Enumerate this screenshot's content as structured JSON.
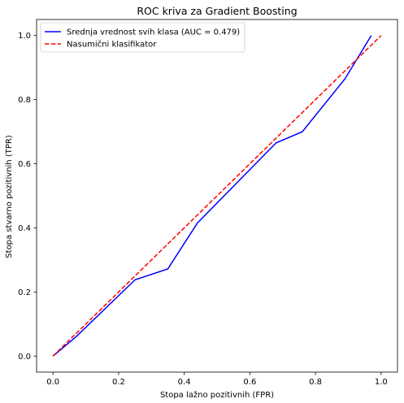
{
  "chart_data": {
    "type": "line",
    "title": "ROC kriva za Gradient Boosting",
    "xlabel": "Stopa lažno pozitivnih (FPR)",
    "ylabel": "Stopa stvarno pozitivnih (TPR)",
    "xlim": [
      -0.05,
      1.05
    ],
    "ylim": [
      -0.05,
      1.05
    ],
    "xticks": [
      "0.0",
      "0.2",
      "0.4",
      "0.6",
      "0.8",
      "1.0"
    ],
    "yticks": [
      "0.0",
      "0.2",
      "0.4",
      "0.6",
      "0.8",
      "1.0"
    ],
    "grid": false,
    "legend_position": "top-left",
    "series": [
      {
        "name": "Srednja vrednost svih klasa (AUC = 0.479)",
        "color": "#0000ff",
        "style": "solid",
        "x": [
          0.0,
          0.07,
          0.25,
          0.35,
          0.44,
          0.68,
          0.76,
          0.89,
          0.97
        ],
        "y": [
          0.0,
          0.06,
          0.238,
          0.272,
          0.415,
          0.665,
          0.7,
          0.865,
          1.0
        ]
      },
      {
        "name": "Nasumični klasifikator",
        "color": "#ff0000",
        "style": "dashed",
        "x": [
          0.0,
          1.0
        ],
        "y": [
          0.0,
          1.0
        ]
      }
    ]
  }
}
